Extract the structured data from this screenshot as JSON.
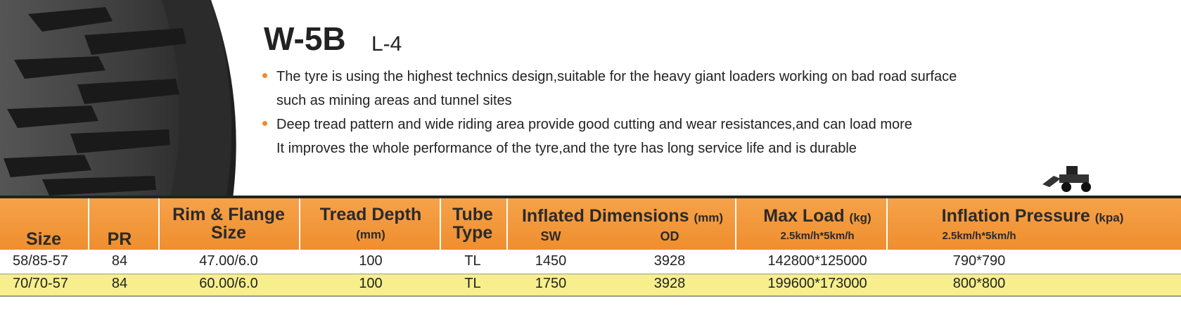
{
  "title": "W-5B",
  "subtitle": "L-4",
  "description": [
    [
      "The tyre is using the highest technics design,suitable for the heavy giant loaders working on bad road surface",
      "such as mining areas and tunnel sites"
    ],
    [
      "Deep tread pattern and wide riding area provide good cutting and wear resistances,and can load more",
      "It improves the whole performance of the tyre,and the tyre has long service life and is durable"
    ]
  ],
  "table": {
    "header": {
      "size": "Size",
      "pr": "PR",
      "rim": [
        "Rim & Flange",
        "Size"
      ],
      "tread": "Tread Depth",
      "tread_unit": "(mm)",
      "tube": [
        "Tube",
        "Type"
      ],
      "dim": "Inflated Dimensions",
      "dim_unit": "(mm)",
      "sw": "SW",
      "od": "OD",
      "load": "Max Load",
      "load_unit": "(kg)",
      "load_speed": "2.5km/h*5km/h",
      "pressure": "Inflation Pressure",
      "pressure_unit": "(kpa)",
      "pressure_speed": "2.5km/h*5km/h"
    },
    "rows": [
      [
        "58/85-57",
        "84",
        "47.00/6.0",
        "100",
        "TL",
        "1450",
        "3928",
        "142800*125000",
        "790*790"
      ],
      [
        "70/70-57",
        "84",
        "60.00/6.0",
        "100",
        "TL",
        "1750",
        "3928",
        "199600*173000",
        "800*800"
      ]
    ]
  }
}
